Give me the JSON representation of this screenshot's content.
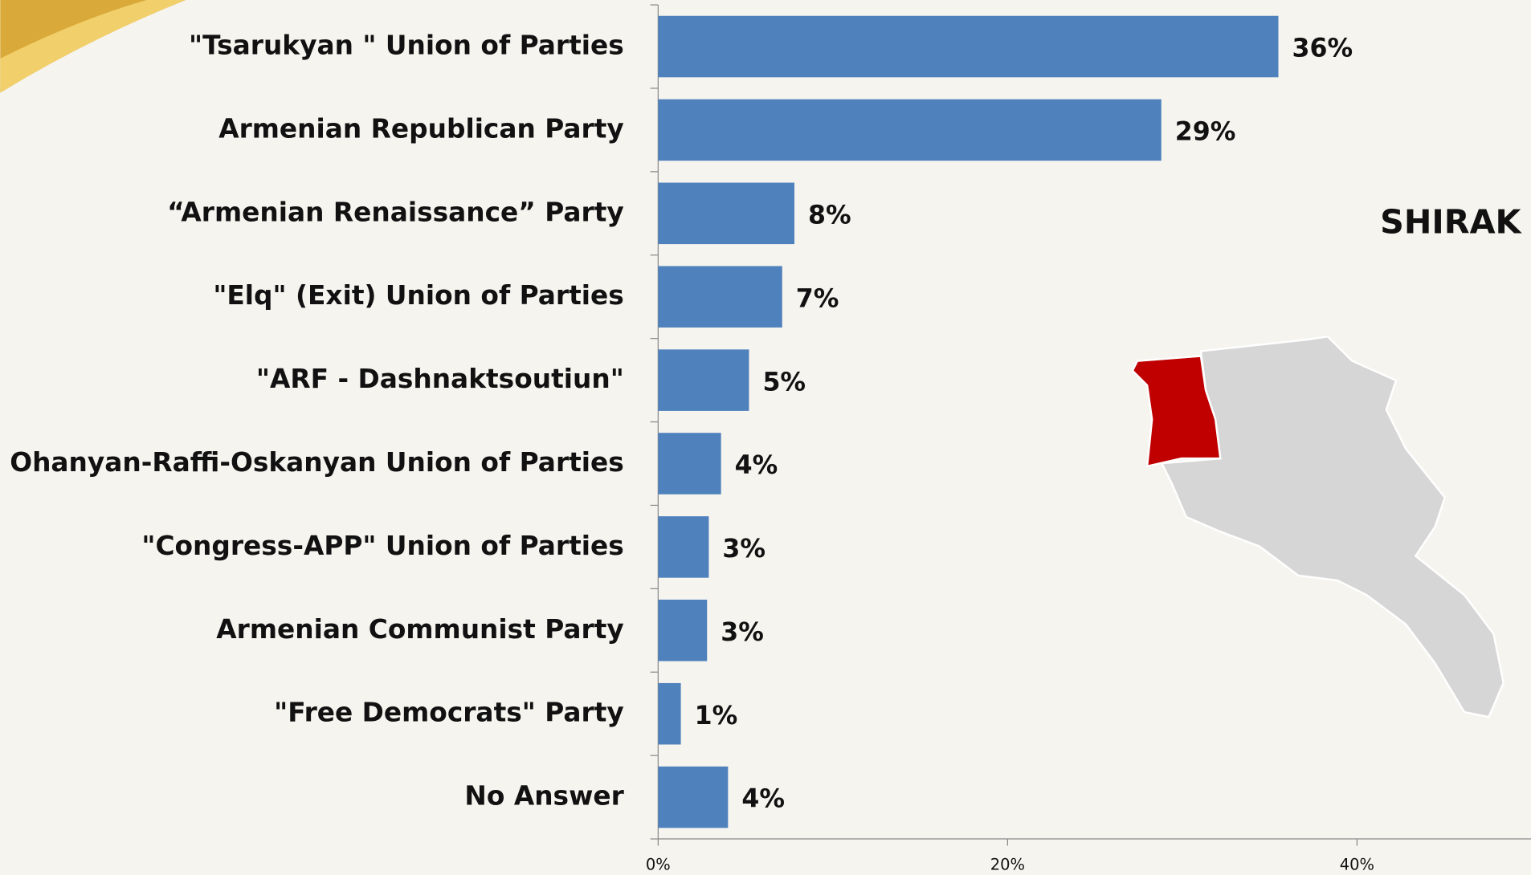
{
  "chart_data": {
    "type": "bar",
    "orientation": "horizontal",
    "annotation": "SHIRAK",
    "categories": [
      "\"Tsarukyan \" Union of Parties",
      "Armenian Republican Party",
      "“Armenian  Renaissance” Party",
      "\"Elq\" (Exit)  Union of Parties",
      "\"ARF -  Dashnaktsoutiun\"",
      "Ohanyan-Raffi-Oskanyan Union of Parties",
      "\"Congress-APP\" Union of Parties",
      "Armenian Communist Party",
      "\"Free Democrats\" Party",
      "No Answer"
    ],
    "values": [
      35.5,
      28.8,
      7.8,
      7.1,
      5.2,
      3.6,
      2.9,
      2.8,
      1.3,
      4.0
    ],
    "value_labels": [
      "36%",
      "29%",
      "8%",
      "7%",
      "5%",
      "4%",
      "3%",
      "3%",
      "1%",
      "4%"
    ],
    "color": "#4f81bd",
    "xlim": [
      0,
      50
    ],
    "xticks": [
      {
        "value": 0,
        "label": "0%"
      },
      {
        "value": 20,
        "label": "20%"
      },
      {
        "value": 40,
        "label": "40%"
      }
    ]
  }
}
